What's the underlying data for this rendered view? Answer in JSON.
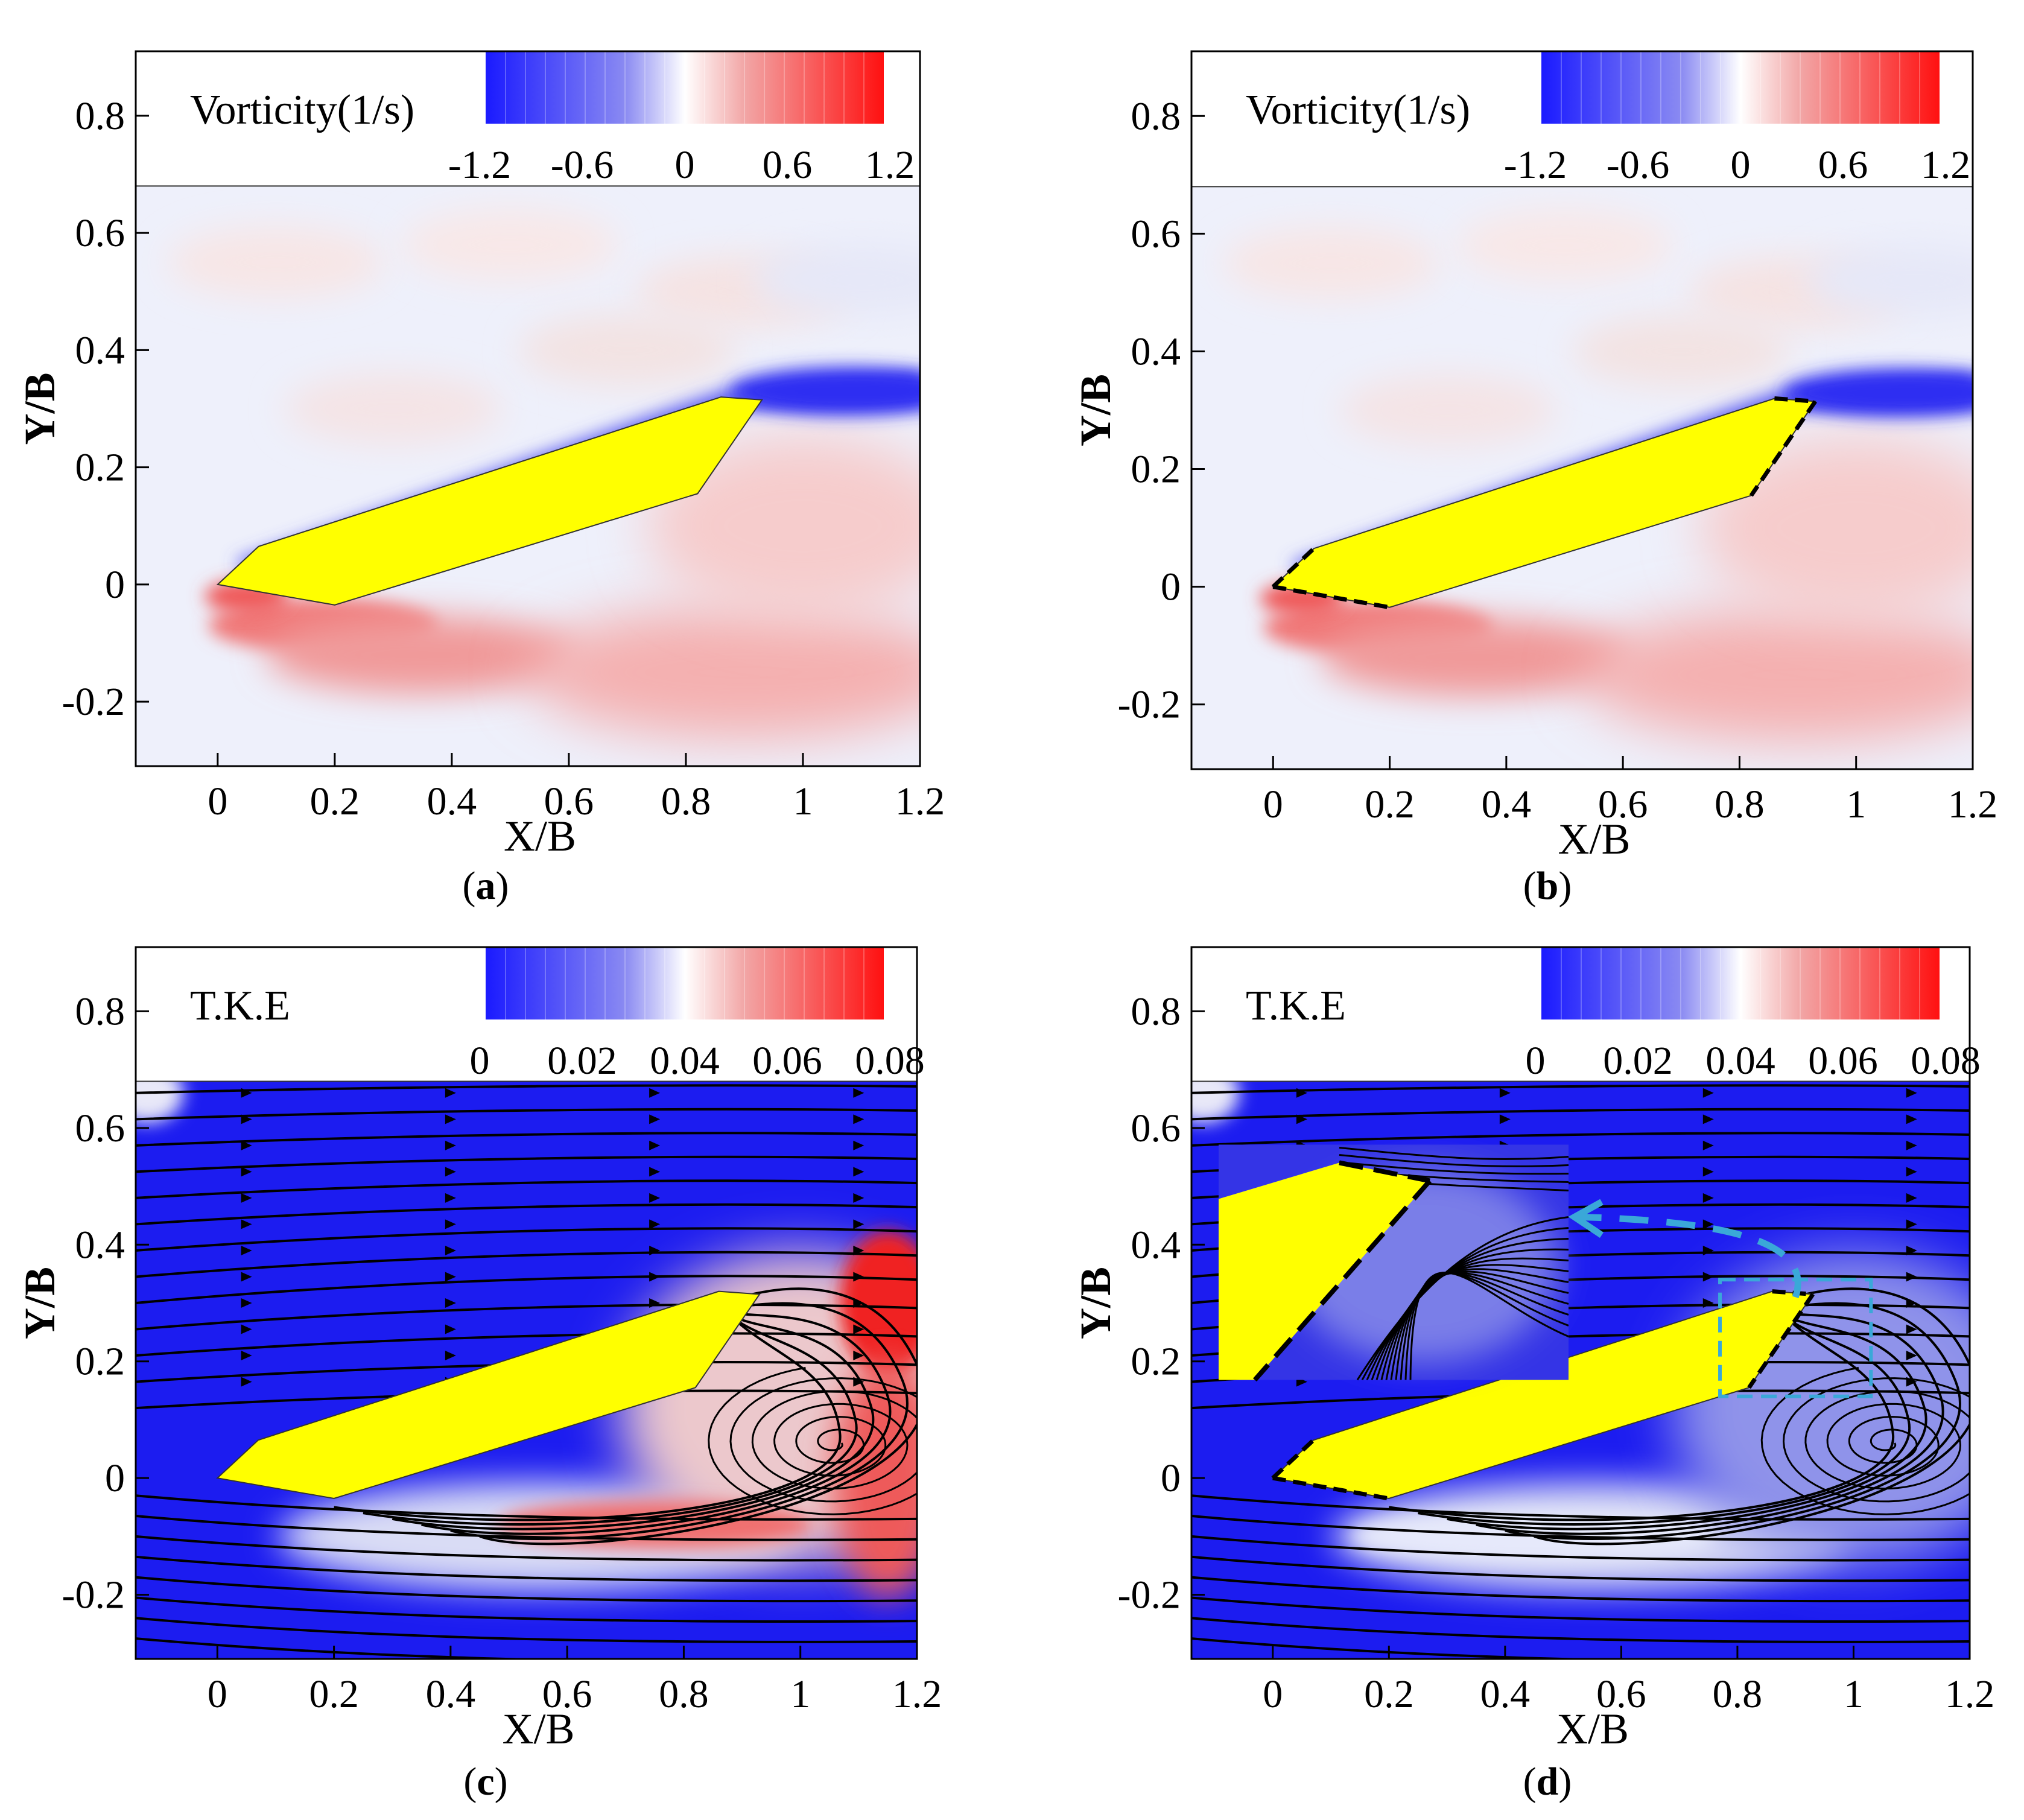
{
  "figure": {
    "panels": [
      {
        "id": "a",
        "caption_open": "(",
        "caption_letter": "a",
        "caption_close": ")",
        "field": "vorticity",
        "legend_title": "Vorticity(1/s)",
        "legend_ticks": [
          "-1.2",
          "-0.6",
          "0",
          "0.6",
          "1.2"
        ],
        "show_streamlines": false,
        "show_dashed_edges": false,
        "show_inset": false
      },
      {
        "id": "b",
        "caption_open": "(",
        "caption_letter": "b",
        "caption_close": ")",
        "field": "vorticity",
        "legend_title": "Vorticity(1/s)",
        "legend_ticks": [
          "-1.2",
          "-0.6",
          "0",
          "0.6",
          "1.2"
        ],
        "show_streamlines": false,
        "show_dashed_edges": true,
        "show_inset": false
      },
      {
        "id": "c",
        "caption_open": "(",
        "caption_letter": "c",
        "caption_close": ")",
        "field": "tke",
        "legend_title": "T.K.E",
        "legend_ticks": [
          "0",
          "0.02",
          "0.04",
          "0.06",
          "0.08"
        ],
        "show_streamlines": true,
        "show_dashed_edges": false,
        "show_inset": false
      },
      {
        "id": "d",
        "caption_open": "(",
        "caption_letter": "d",
        "caption_close": ")",
        "field": "tke",
        "legend_title": "T.K.E",
        "legend_ticks": [
          "0",
          "0.02",
          "0.04",
          "0.06",
          "0.08"
        ],
        "show_streamlines": true,
        "show_dashed_edges": true,
        "show_inset": true
      }
    ]
  },
  "chart_data": {
    "type": "contour",
    "xlabel": "X/B",
    "ylabel": "Y/B",
    "xlim": [
      -0.14,
      1.2
    ],
    "ylim": [
      -0.31,
      0.91
    ],
    "legend_top_y": 0.68,
    "xticks": [
      0,
      0.2,
      0.4,
      0.6,
      0.8,
      1,
      1.2
    ],
    "xtick_labels": [
      "0",
      "0.2",
      "0.4",
      "0.6",
      "0.8",
      "1",
      "1.2"
    ],
    "yticks": [
      -0.2,
      0,
      0.2,
      0.4,
      0.6,
      0.8
    ],
    "ytick_labels": [
      "-0.2",
      "0",
      "0.2",
      "0.4",
      "0.6",
      "0.8"
    ],
    "body_polygon": [
      [
        0,
        0
      ],
      [
        0.07,
        0.065
      ],
      [
        0.86,
        0.32
      ],
      [
        0.93,
        0.315
      ],
      [
        0.82,
        0.155
      ],
      [
        0.2,
        -0.035
      ]
    ],
    "vorticity_range": [
      -1.2,
      1.2
    ],
    "tke_range": [
      0,
      0.08
    ],
    "vortex_center": [
      1.06,
      0.06
    ],
    "colors": {
      "body_fill": "#ffff00",
      "negative": "#1a1aff",
      "positive": "#ff1a1a",
      "neutral": "#ffffff",
      "inset_arrow": "#3aa8d8"
    }
  }
}
